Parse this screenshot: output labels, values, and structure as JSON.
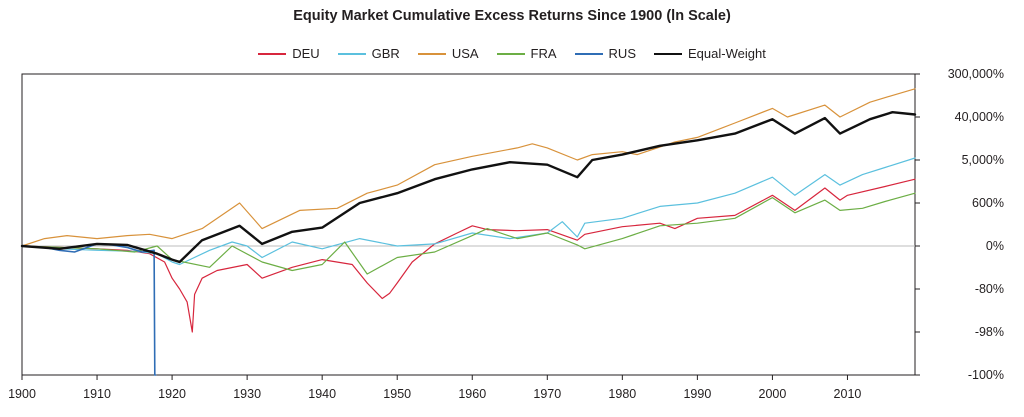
{
  "chart_data": {
    "type": "line",
    "title": "Equity Market Cumulative Excess Returns Since 1900 (ln Scale)",
    "xlabel": "",
    "ylabel": "",
    "xlim": [
      1900,
      2019
    ],
    "x_ticks": [
      1900,
      1910,
      1920,
      1930,
      1940,
      1950,
      1960,
      1970,
      1980,
      1990,
      2000,
      2010
    ],
    "y_scale": "log(1 + return)",
    "y_ticks": [
      "300,000%",
      "40,000%",
      "5,000%",
      "600%",
      "0%",
      "-80%",
      "-98%",
      "-100%"
    ],
    "y_tick_values_pct": [
      300000,
      40000,
      5000,
      600,
      0,
      -80,
      -98,
      -100
    ],
    "ylim_pct": [
      -100,
      300000
    ],
    "legend_position": "top-center",
    "grid": false,
    "baseline_pct": 0,
    "series": [
      {
        "name": "DEU",
        "color": "#d7263d",
        "width": 1.2,
        "x": [
          1900,
          1905,
          1910,
          1914,
          1917,
          1919,
          1920,
          1921,
          1922,
          1922.7,
          1923,
          1924,
          1926,
          1930,
          1932,
          1936,
          1940,
          1944,
          1946,
          1948,
          1949,
          1950,
          1952,
          1955,
          1958,
          1960,
          1962,
          1966,
          1970,
          1974,
          1975,
          1980,
          1985,
          1987,
          1990,
          1995,
          2000,
          2003,
          2007,
          2009,
          2010,
          2015,
          2019
        ],
        "y": [
          0,
          -5,
          -10,
          -15,
          -25,
          -45,
          -70,
          -80,
          -90,
          -98,
          -85,
          -70,
          -60,
          -50,
          -70,
          -55,
          -40,
          -50,
          -75,
          -88,
          -84,
          -75,
          -45,
          10,
          80,
          150,
          110,
          100,
          110,
          30,
          70,
          140,
          180,
          120,
          250,
          300,
          900,
          400,
          1300,
          700,
          900,
          1400,
          2000
        ]
      },
      {
        "name": "GBR",
        "color": "#5bc0de",
        "width": 1.2,
        "x": [
          1900,
          1905,
          1910,
          1915,
          1918,
          1920,
          1921,
          1925,
          1928,
          1930,
          1932,
          1936,
          1940,
          1945,
          1950,
          1955,
          1960,
          1965,
          1970,
          1972,
          1974,
          1975,
          1980,
          1985,
          1990,
          1995,
          2000,
          2003,
          2007,
          2009,
          2012,
          2015,
          2019
        ],
        "y": [
          0,
          -10,
          -15,
          -18,
          -25,
          -45,
          -50,
          -15,
          20,
          0,
          -35,
          20,
          -10,
          40,
          0,
          10,
          80,
          40,
          80,
          200,
          50,
          180,
          250,
          500,
          600,
          1000,
          2200,
          900,
          2500,
          1500,
          2500,
          3500,
          5500
        ]
      },
      {
        "name": "USA",
        "color": "#d8923b",
        "width": 1.2,
        "x": [
          1900,
          1903,
          1906,
          1910,
          1914,
          1917,
          1920,
          1924,
          1929,
          1932,
          1937,
          1942,
          1946,
          1950,
          1955,
          1960,
          1966,
          1968,
          1970,
          1974,
          1976,
          1980,
          1982,
          1987,
          1990,
          1995,
          2000,
          2002,
          2007,
          2009,
          2013,
          2016,
          2019
        ],
        "y": [
          0,
          40,
          60,
          40,
          60,
          70,
          40,
          120,
          600,
          120,
          400,
          450,
          1000,
          1500,
          4000,
          6000,
          9000,
          11000,
          9000,
          5000,
          6500,
          7500,
          6500,
          12000,
          15000,
          30000,
          60000,
          40000,
          70000,
          40000,
          80000,
          110000,
          150000
        ]
      },
      {
        "name": "FRA",
        "color": "#6cae45",
        "width": 1.2,
        "x": [
          1900,
          1905,
          1910,
          1915,
          1918,
          1920,
          1925,
          1928,
          1932,
          1936,
          1940,
          1943,
          1946,
          1950,
          1955,
          1960,
          1962,
          1966,
          1970,
          1974,
          1975,
          1980,
          1985,
          1990,
          1995,
          2000,
          2003,
          2007,
          2009,
          2012,
          2015,
          2019
        ],
        "y": [
          0,
          -5,
          -10,
          -20,
          0,
          -40,
          -55,
          0,
          -45,
          -60,
          -50,
          20,
          -65,
          -35,
          -20,
          60,
          120,
          40,
          80,
          5,
          -10,
          40,
          150,
          180,
          250,
          800,
          350,
          700,
          400,
          450,
          650,
          1000
        ]
      },
      {
        "name": "RUS",
        "color": "#2f6db5",
        "width": 1.6,
        "x": [
          1900,
          1903,
          1905,
          1907,
          1910,
          1912,
          1914,
          1916,
          1917.6,
          1917.7,
          1917.8
        ],
        "y": [
          0,
          -5,
          -15,
          -20,
          10,
          5,
          -5,
          -20,
          -15,
          -99.99,
          -100
        ]
      },
      {
        "name": "Equal-Weight",
        "color": "#111111",
        "width": 2.4,
        "x": [
          1900,
          1905,
          1910,
          1914,
          1918,
          1920,
          1921,
          1924,
          1929,
          1932,
          1936,
          1940,
          1945,
          1950,
          1955,
          1960,
          1965,
          1970,
          1974,
          1976,
          1980,
          1985,
          1990,
          1995,
          2000,
          2003,
          2007,
          2009,
          2013,
          2016,
          2019
        ],
        "y": [
          0,
          -10,
          10,
          5,
          -25,
          -40,
          -45,
          30,
          150,
          10,
          90,
          130,
          600,
          1000,
          2000,
          3200,
          4500,
          4000,
          2200,
          5000,
          6500,
          10000,
          13000,
          18000,
          36000,
          18000,
          38000,
          18000,
          36000,
          50000,
          45000
        ]
      }
    ]
  }
}
